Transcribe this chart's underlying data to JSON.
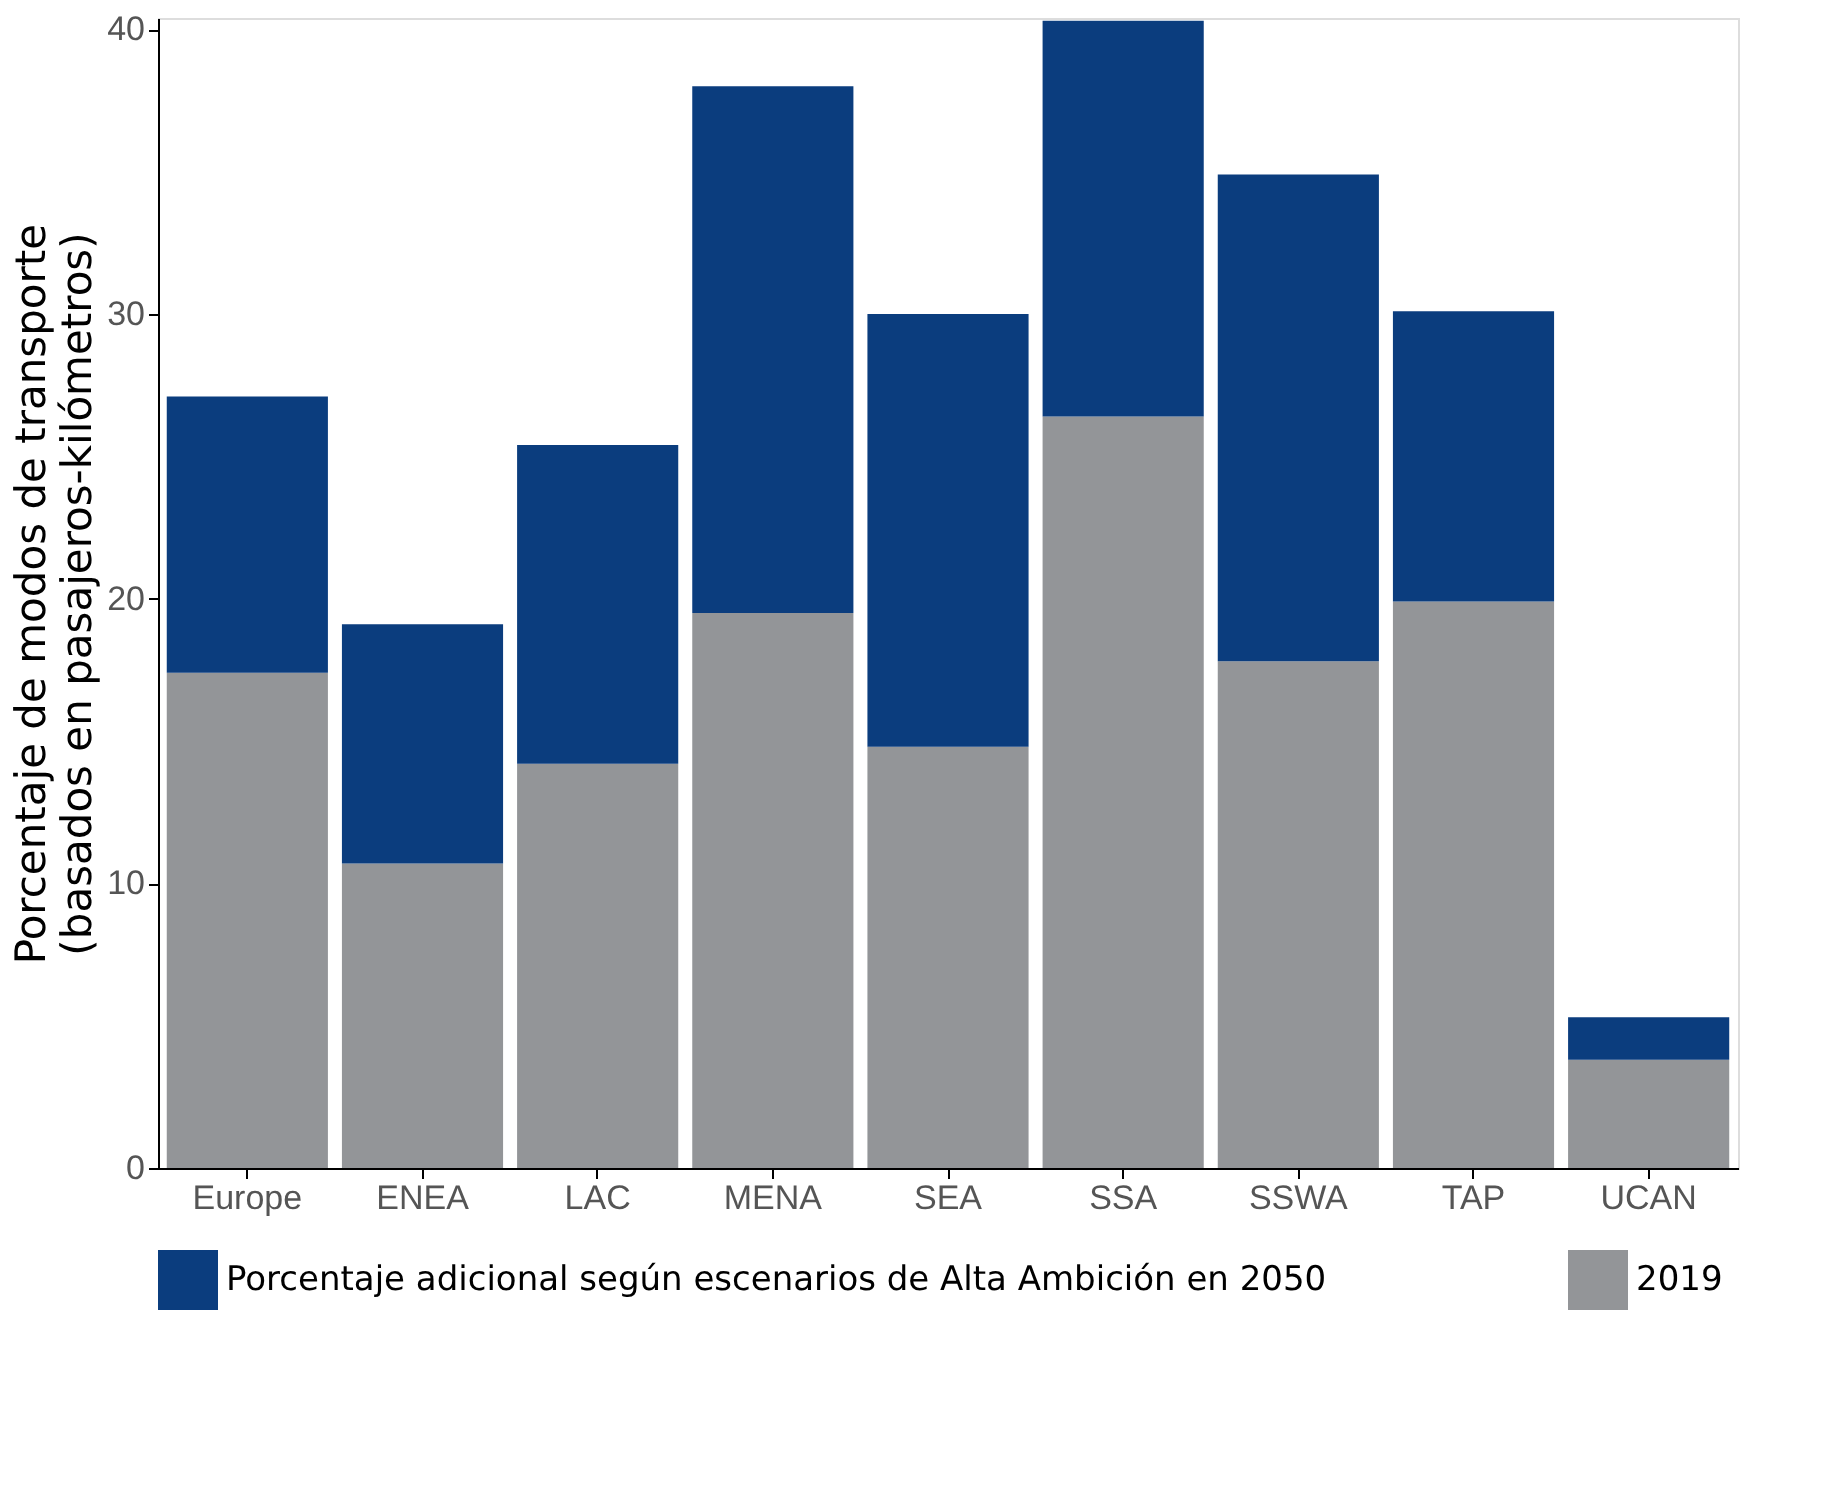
{
  "chart_data": {
    "type": "bar",
    "stacked": true,
    "ylabel": "Porcentaje de modos de transporte\n(basados en pasajeros-kilómetros)",
    "categories": [
      "Europe",
      "ENEA",
      "LAC",
      "MENA",
      "SEA",
      "SSA",
      "SSWA",
      "TAP",
      "UCAN"
    ],
    "series": [
      {
        "name": "2019",
        "color": "#939598",
        "values": [
          17.4,
          10.7,
          14.2,
          19.5,
          14.8,
          26.4,
          17.8,
          19.9,
          3.8
        ]
      },
      {
        "name": "Porcentaje adicional según escenarios de Alta Ambición en 2050",
        "color": "#0b3d7e",
        "values": [
          9.7,
          8.4,
          11.2,
          18.5,
          15.2,
          13.9,
          17.1,
          10.2,
          1.5
        ]
      }
    ],
    "ylim": [
      0,
      40.4
    ],
    "yticks": [
      0,
      10,
      20,
      30,
      40
    ],
    "grid": false,
    "legend": "bottom"
  }
}
